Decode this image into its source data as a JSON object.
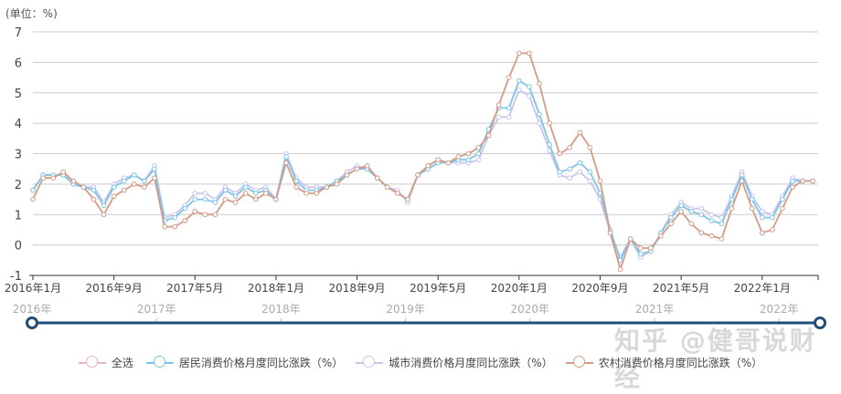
{
  "unit_label": "(单位：%)",
  "watermark": "知乎 @健哥说财经",
  "colors": {
    "all": "#e6b5c3",
    "national": "#7ec4e8",
    "urban": "#c9c4ec",
    "rural": "#d49b86",
    "slider": "#1f4e79",
    "grid": "#cccccc"
  },
  "legend": [
    {
      "key": "all",
      "label": "全选"
    },
    {
      "key": "national",
      "label": "居民消费价格月度同比涨跌（%）"
    },
    {
      "key": "urban",
      "label": "城市消费价格月度同比涨跌（%）"
    },
    {
      "key": "rural",
      "label": "农村消费价格月度同比涨跌（%）"
    }
  ],
  "slider": {
    "year_labels": [
      "2016年",
      "2017年",
      "2018年",
      "2019年",
      "2020年",
      "2021年",
      "2022年"
    ],
    "start": "2016年1月",
    "end": "2022年6月"
  },
  "chart_data": {
    "type": "line",
    "title": "",
    "ylabel": "(单位：%)",
    "xlabel": "",
    "ylim": [
      -1,
      7
    ],
    "yticks": [
      -1,
      0,
      1,
      2,
      3,
      4,
      5,
      6,
      7
    ],
    "grid": true,
    "legend_position": "bottom",
    "xtick_labels": [
      "2016年1月",
      "2016年9月",
      "2017年5月",
      "2018年1月",
      "2018年9月",
      "2019年5月",
      "2020年1月",
      "2020年9月",
      "2021年5月",
      "2022年1月"
    ],
    "x_start": "2016-01",
    "x_end": "2022-06",
    "series": [
      {
        "name": "居民消费价格月度同比涨跌（%）",
        "key": "national",
        "values": [
          1.8,
          2.3,
          2.3,
          2.3,
          2.0,
          1.9,
          1.8,
          1.3,
          1.9,
          2.1,
          2.3,
          2.1,
          2.5,
          0.8,
          0.9,
          1.2,
          1.5,
          1.5,
          1.4,
          1.8,
          1.6,
          1.9,
          1.7,
          1.8,
          1.5,
          2.9,
          2.1,
          1.8,
          1.8,
          1.9,
          2.1,
          2.3,
          2.5,
          2.5,
          2.2,
          1.9,
          1.7,
          1.5,
          2.3,
          2.5,
          2.7,
          2.7,
          2.8,
          2.8,
          3.0,
          3.8,
          4.5,
          4.5,
          5.4,
          5.2,
          4.3,
          3.3,
          2.4,
          2.5,
          2.7,
          2.4,
          1.7,
          0.5,
          -0.5,
          0.2,
          -0.3,
          -0.2,
          0.4,
          0.9,
          1.3,
          1.1,
          1.0,
          0.8,
          0.7,
          1.5,
          2.3,
          1.5,
          0.9,
          0.9,
          1.5,
          2.1,
          2.1,
          2.1
        ]
      },
      {
        "name": "城市消费价格月度同比涨跌（%）",
        "key": "urban",
        "values": [
          1.8,
          2.3,
          2.3,
          2.3,
          2.1,
          1.9,
          1.9,
          1.4,
          2.0,
          2.2,
          2.3,
          2.1,
          2.6,
          0.9,
          1.0,
          1.3,
          1.7,
          1.7,
          1.5,
          1.9,
          1.7,
          2.0,
          1.8,
          1.9,
          1.5,
          3.0,
          2.2,
          1.9,
          1.9,
          1.9,
          2.1,
          2.4,
          2.6,
          2.5,
          2.2,
          1.9,
          1.8,
          1.4,
          2.3,
          2.6,
          2.8,
          2.7,
          2.7,
          2.7,
          2.8,
          3.6,
          4.2,
          4.2,
          5.1,
          4.9,
          4.0,
          3.1,
          2.3,
          2.2,
          2.4,
          2.1,
          1.5,
          0.4,
          -0.4,
          0.2,
          -0.4,
          -0.2,
          0.4,
          1.0,
          1.4,
          1.2,
          1.2,
          1.0,
          0.9,
          1.6,
          2.4,
          1.6,
          1.1,
          1.0,
          1.6,
          2.2,
          2.1,
          2.1
        ]
      },
      {
        "name": "农村消费价格月度同比涨跌（%）",
        "key": "rural",
        "values": [
          1.5,
          2.2,
          2.2,
          2.4,
          2.1,
          1.9,
          1.5,
          1.0,
          1.6,
          1.8,
          2.0,
          1.9,
          2.2,
          0.6,
          0.6,
          0.8,
          1.1,
          1.0,
          1.0,
          1.5,
          1.4,
          1.7,
          1.5,
          1.7,
          1.5,
          2.7,
          1.9,
          1.7,
          1.7,
          1.9,
          2.0,
          2.3,
          2.5,
          2.6,
          2.2,
          1.9,
          1.7,
          1.5,
          2.3,
          2.6,
          2.8,
          2.7,
          2.9,
          3.0,
          3.2,
          3.6,
          4.6,
          5.5,
          6.3,
          6.3,
          5.3,
          4.0,
          3.0,
          3.2,
          3.7,
          3.2,
          2.1,
          0.4,
          -0.8,
          0.2,
          -0.1,
          -0.1,
          0.3,
          0.7,
          1.1,
          0.7,
          0.4,
          0.3,
          0.2,
          1.2,
          2.1,
          1.2,
          0.4,
          0.5,
          1.2,
          1.9,
          2.1,
          2.1
        ]
      }
    ]
  }
}
